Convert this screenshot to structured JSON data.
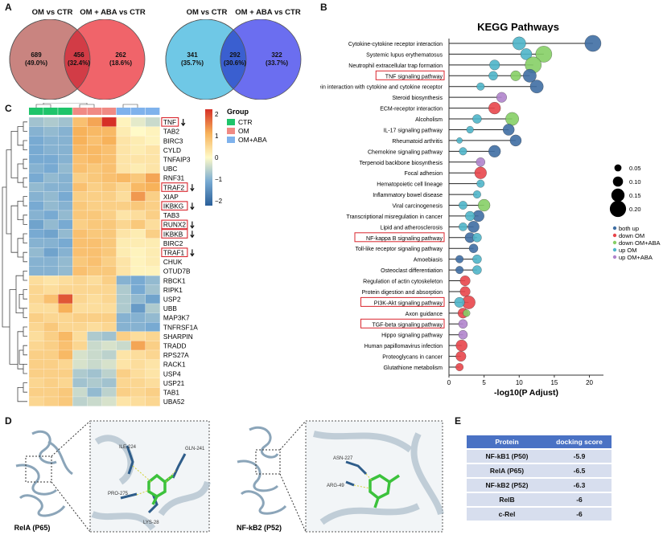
{
  "panels": {
    "a": "A",
    "b": "B",
    "c": "C",
    "d": "D",
    "e": "E"
  },
  "venn": [
    {
      "left_title": "OM vs CTR",
      "right_title": "OM + ABA vs CTR",
      "left_count": "689",
      "left_pct": "(49.0%)",
      "overlap_count": "456",
      "overlap_pct": "(32.4%)",
      "right_count": "262",
      "right_pct": "(18.6%)",
      "colors": {
        "left": "#c98480",
        "right": "#f0646a",
        "overlap": "#d23c46"
      }
    },
    {
      "left_title": "OM vs CTR",
      "right_title": "OM + ABA vs CTR",
      "left_count": "341",
      "left_pct": "(35.7%)",
      "overlap_count": "292",
      "overlap_pct": "(30.6%)",
      "right_count": "322",
      "right_pct": "(33.7%)",
      "colors": {
        "left": "#6fc8e6",
        "right": "#6b6ef0",
        "overlap": "#3a5fd0"
      }
    }
  ],
  "chart_data": [
    {
      "type": "scatter",
      "title": "KEGG Pathways",
      "xlabel": "-log10(P Adjust)",
      "xlim": [
        0,
        22
      ],
      "xticks": [
        0,
        5,
        10,
        15,
        20
      ],
      "size_legend": [
        "0.05",
        "0.10",
        "0.15",
        "0.20"
      ],
      "legend": [
        {
          "name": "both up",
          "color": "#3f6ea3"
        },
        {
          "name": "down OM",
          "color": "#e8464b"
        },
        {
          "name": "down OM+ABA",
          "color": "#86cf66"
        },
        {
          "name": "up OM",
          "color": "#4fb5c9"
        },
        {
          "name": "up OM+ABA",
          "color": "#b084cc"
        }
      ],
      "boxed": [
        "TNF signaling pathway",
        "NF-kappa B signaling pathway",
        "PI3K-Akt signaling pathway",
        "TGF-beta signaling pathway"
      ],
      "pathways": [
        {
          "name": "Cytokine-cytokine receptor interaction",
          "points": [
            {
              "x": 20.5,
              "s": 0.2,
              "g": 0
            },
            {
              "x": 10,
              "s": 0.15,
              "g": 3
            }
          ]
        },
        {
          "name": "Systemic lupus erythematosus",
          "points": [
            {
              "x": 13.5,
              "s": 0.2,
              "g": 2
            },
            {
              "x": 11,
              "s": 0.12,
              "g": 3
            }
          ]
        },
        {
          "name": "Neutrophil extracellular trap formation",
          "points": [
            {
              "x": 12,
              "s": 0.2,
              "g": 2
            },
            {
              "x": 6.5,
              "s": 0.1,
              "g": 3
            }
          ]
        },
        {
          "name": "TNF signaling pathway",
          "points": [
            {
              "x": 11.5,
              "s": 0.15,
              "g": 0
            },
            {
              "x": 9.5,
              "s": 0.1,
              "g": 2
            },
            {
              "x": 6.3,
              "s": 0.08,
              "g": 3
            }
          ]
        },
        {
          "name": "Viral protein interaction with cytokine and cytokine receptor",
          "points": [
            {
              "x": 12.5,
              "s": 0.15,
              "g": 0
            },
            {
              "x": 4.5,
              "s": 0.06,
              "g": 3
            }
          ]
        },
        {
          "name": "Steroid biosynthesis",
          "points": [
            {
              "x": 7.5,
              "s": 0.1,
              "g": 4
            }
          ]
        },
        {
          "name": "ECM-receptor interaction",
          "points": [
            {
              "x": 6.5,
              "s": 0.13,
              "g": 1
            }
          ]
        },
        {
          "name": "Alcoholism",
          "points": [
            {
              "x": 9,
              "s": 0.15,
              "g": 2
            },
            {
              "x": 4,
              "s": 0.08,
              "g": 3
            }
          ]
        },
        {
          "name": "IL-17 signaling pathway",
          "points": [
            {
              "x": 8.5,
              "s": 0.12,
              "g": 0
            },
            {
              "x": 3,
              "s": 0.05,
              "g": 3
            }
          ]
        },
        {
          "name": "Rheumatoid arthritis",
          "points": [
            {
              "x": 9.5,
              "s": 0.12,
              "g": 0
            },
            {
              "x": 1.5,
              "s": 0.03,
              "g": 3
            }
          ]
        },
        {
          "name": "Chemokine signaling pathway",
          "points": [
            {
              "x": 6.5,
              "s": 0.13,
              "g": 0
            },
            {
              "x": 2,
              "s": 0.06,
              "g": 3
            }
          ]
        },
        {
          "name": "Terpenoid backbone biosynthesis",
          "points": [
            {
              "x": 4.5,
              "s": 0.08,
              "g": 4
            }
          ]
        },
        {
          "name": "Focal adhesion",
          "points": [
            {
              "x": 4.5,
              "s": 0.13,
              "g": 1
            }
          ]
        },
        {
          "name": "Hematopoietic cell lineage",
          "points": [
            {
              "x": 4.5,
              "s": 0.06,
              "g": 3
            }
          ]
        },
        {
          "name": "Inflammatory bowel disease",
          "points": [
            {
              "x": 4,
              "s": 0.06,
              "g": 3
            }
          ]
        },
        {
          "name": "Viral carcinogenesis",
          "points": [
            {
              "x": 5,
              "s": 0.13,
              "g": 2
            },
            {
              "x": 2,
              "s": 0.07,
              "g": 3
            }
          ]
        },
        {
          "name": "Transcriptional misregulation in cancer",
          "points": [
            {
              "x": 4.2,
              "s": 0.12,
              "g": 0
            },
            {
              "x": 3,
              "s": 0.09,
              "g": 3
            }
          ]
        },
        {
          "name": "Lipid and atherosclerosis",
          "points": [
            {
              "x": 3.5,
              "s": 0.12,
              "g": 0
            },
            {
              "x": 2,
              "s": 0.07,
              "g": 3
            }
          ]
        },
        {
          "name": "NF-kappa B signaling pathway",
          "points": [
            {
              "x": 4,
              "s": 0.08,
              "g": 3
            },
            {
              "x": 3,
              "s": 0.1,
              "g": 0
            }
          ]
        },
        {
          "name": "Toll-like receptor signaling pathway",
          "points": [
            {
              "x": 3.5,
              "s": 0.08,
              "g": 0
            }
          ]
        },
        {
          "name": "Amoebiasis",
          "points": [
            {
              "x": 4,
              "s": 0.08,
              "g": 3
            },
            {
              "x": 1.5,
              "s": 0.06,
              "g": 0
            }
          ]
        },
        {
          "name": "Osteoclast differentiation",
          "points": [
            {
              "x": 4,
              "s": 0.08,
              "g": 3
            },
            {
              "x": 1.5,
              "s": 0.06,
              "g": 0
            }
          ]
        },
        {
          "name": "Regulation of actin cytoskeleton",
          "points": [
            {
              "x": 2.3,
              "s": 0.1,
              "g": 1
            }
          ]
        },
        {
          "name": "Protein digestion and absorption",
          "points": [
            {
              "x": 2.3,
              "s": 0.1,
              "g": 1
            }
          ]
        },
        {
          "name": "PI3K-Akt signaling pathway",
          "points": [
            {
              "x": 2.8,
              "s": 0.15,
              "g": 1
            },
            {
              "x": 1.5,
              "s": 0.1,
              "g": 3
            }
          ]
        },
        {
          "name": "Axon guidance",
          "points": [
            {
              "x": 2,
              "s": 0.1,
              "g": 1
            },
            {
              "x": 2.5,
              "s": 0.05,
              "g": 2
            }
          ]
        },
        {
          "name": "TGF-beta signaling pathway",
          "points": [
            {
              "x": 2,
              "s": 0.08,
              "g": 4
            }
          ]
        },
        {
          "name": "Hippo signaling pathway",
          "points": [
            {
              "x": 2,
              "s": 0.08,
              "g": 4
            }
          ]
        },
        {
          "name": "Human papillomavirus infection",
          "points": [
            {
              "x": 1.8,
              "s": 0.12,
              "g": 1
            }
          ]
        },
        {
          "name": "Proteoglycans in cancer",
          "points": [
            {
              "x": 1.7,
              "s": 0.1,
              "g": 1
            }
          ]
        },
        {
          "name": "Glutathione metabolism",
          "points": [
            {
              "x": 1.5,
              "s": 0.06,
              "g": 1
            }
          ]
        }
      ]
    },
    {
      "type": "heatmap",
      "columns": [
        "CTR",
        "CTR",
        "CTR",
        "OM",
        "OM",
        "OM",
        "OM+ABA",
        "OM+ABA",
        "OM+ABA"
      ],
      "group_title": "Group",
      "groups": [
        {
          "name": "CTR",
          "color": "#1fc46a"
        },
        {
          "name": "OM",
          "color": "#f08a84"
        },
        {
          "name": "OM+ABA",
          "color": "#7fb2ec"
        }
      ],
      "colorbar_ticks": [
        "2",
        "1",
        "0",
        "−1",
        "−2"
      ],
      "boxed": [
        "TNF",
        "TRAF2",
        "IKBKG",
        "RUNX2",
        "IKBKB",
        "TRAF1"
      ],
      "arrowed": [
        "TNF",
        "TRAF2",
        "IKBKG",
        "RUNX2",
        "IKBKB",
        "TRAF1"
      ],
      "rows": [
        {
          "gene": "TNF",
          "v": [
            -0.7,
            -0.6,
            -0.7,
            0.8,
            1.1,
            2.0,
            0.1,
            -0.2,
            -0.4
          ]
        },
        {
          "gene": "TAB2",
          "v": [
            -0.9,
            -0.8,
            -0.9,
            1.0,
            0.9,
            0.9,
            0.2,
            0.0,
            0.1
          ]
        },
        {
          "gene": "BIRC3",
          "v": [
            -1.0,
            -0.9,
            -0.9,
            1.0,
            0.8,
            1.0,
            0.3,
            0.2,
            0.1
          ]
        },
        {
          "gene": "CYLD",
          "v": [
            -1.0,
            -0.9,
            -0.9,
            0.9,
            0.9,
            0.8,
            0.3,
            0.2,
            0.3
          ]
        },
        {
          "gene": "TNFAIP3",
          "v": [
            -1.0,
            -1.0,
            -0.9,
            0.8,
            0.9,
            0.8,
            0.3,
            0.3,
            0.3
          ]
        },
        {
          "gene": "UBC",
          "v": [
            -0.9,
            -1.0,
            -0.8,
            0.8,
            0.7,
            0.8,
            0.3,
            0.2,
            0.3
          ]
        },
        {
          "gene": "RNF31",
          "v": [
            -1.0,
            -0.8,
            -0.9,
            0.6,
            0.7,
            0.8,
            0.9,
            0.7,
            1.1
          ]
        },
        {
          "gene": "TRAF2",
          "v": [
            -0.8,
            -0.9,
            -0.9,
            0.8,
            0.6,
            0.7,
            0.5,
            0.9,
            1.0
          ]
        },
        {
          "gene": "XIAP",
          "v": [
            -0.9,
            -0.8,
            -1.0,
            0.6,
            0.6,
            0.6,
            0.4,
            1.2,
            0.6
          ]
        },
        {
          "gene": "IKBKG",
          "v": [
            -1.0,
            -0.8,
            -0.9,
            0.7,
            0.6,
            0.6,
            0.6,
            0.7,
            0.6
          ]
        },
        {
          "gene": "TAB3",
          "v": [
            -0.9,
            -1.0,
            -0.8,
            0.7,
            0.7,
            0.6,
            0.3,
            0.4,
            0.6
          ]
        },
        {
          "gene": "RUNX2",
          "v": [
            -1.1,
            -0.8,
            -1.0,
            0.6,
            0.7,
            0.7,
            0.5,
            0.7,
            0.4
          ]
        },
        {
          "gene": "IKBKB",
          "v": [
            -1.0,
            -1.1,
            -0.8,
            0.8,
            0.7,
            0.7,
            0.3,
            0.2,
            0.6
          ]
        },
        {
          "gene": "BIRC2",
          "v": [
            -0.9,
            -0.9,
            -1.0,
            0.8,
            0.8,
            0.7,
            0.2,
            0.2,
            0.2
          ]
        },
        {
          "gene": "TRAF1",
          "v": [
            -0.8,
            -1.1,
            -0.9,
            0.8,
            0.8,
            0.7,
            0.2,
            0.1,
            0.2
          ]
        },
        {
          "gene": "CHUK",
          "v": [
            -0.9,
            -0.9,
            -0.8,
            0.7,
            0.8,
            0.6,
            0.3,
            0.1,
            0.2
          ]
        },
        {
          "gene": "OTUD7B",
          "v": [
            -0.9,
            -0.9,
            -0.8,
            0.8,
            0.7,
            0.7,
            0.3,
            0.1,
            0.1
          ]
        },
        {
          "gene": "RBCK1",
          "v": [
            0.4,
            0.3,
            0.4,
            0.5,
            0.4,
            0.6,
            -0.9,
            -1.0,
            -0.8
          ]
        },
        {
          "gene": "RIPK1",
          "v": [
            0.5,
            0.4,
            0.5,
            0.5,
            0.5,
            0.5,
            -0.6,
            -1.0,
            -0.7
          ]
        },
        {
          "gene": "USP2",
          "v": [
            0.5,
            0.8,
            1.7,
            0.5,
            0.4,
            0.5,
            -0.6,
            -0.8,
            -1.1
          ]
        },
        {
          "gene": "UBB",
          "v": [
            0.4,
            0.4,
            1.0,
            0.4,
            0.4,
            0.4,
            -0.6,
            -1.2,
            -0.6
          ]
        },
        {
          "gene": "MAP3K7",
          "v": [
            0.6,
            0.5,
            0.5,
            0.6,
            0.6,
            0.6,
            -0.9,
            -0.9,
            -0.8
          ]
        },
        {
          "gene": "TNFRSF1A",
          "v": [
            0.5,
            0.7,
            0.5,
            0.5,
            0.4,
            0.5,
            -0.9,
            -0.9,
            -1.0
          ]
        },
        {
          "gene": "SHARPIN",
          "v": [
            0.4,
            0.6,
            0.9,
            0.4,
            -0.6,
            -0.7,
            0.6,
            0.4,
            0.5
          ]
        },
        {
          "gene": "TRADD",
          "v": [
            0.5,
            0.6,
            0.8,
            0.5,
            -0.4,
            -0.3,
            -0.4,
            1.1,
            0.6
          ]
        },
        {
          "gene": "RPS27A",
          "v": [
            0.6,
            0.6,
            0.9,
            -0.3,
            -0.4,
            -0.5,
            0.3,
            0.4,
            0.5
          ]
        },
        {
          "gene": "RACK1",
          "v": [
            0.6,
            0.6,
            0.5,
            -0.3,
            -0.4,
            -0.3,
            0.3,
            0.4,
            0.3
          ]
        },
        {
          "gene": "USP4",
          "v": [
            0.6,
            0.6,
            0.6,
            -0.6,
            -0.7,
            -0.5,
            0.6,
            0.4,
            0.3
          ]
        },
        {
          "gene": "USP21",
          "v": [
            0.5,
            0.6,
            0.5,
            -0.7,
            -0.6,
            -0.7,
            0.5,
            0.5,
            0.4
          ]
        },
        {
          "gene": "TAB1",
          "v": [
            0.6,
            0.6,
            0.7,
            -0.4,
            -0.8,
            -0.5,
            0.6,
            0.5,
            0.6
          ]
        },
        {
          "gene": "UBA52",
          "v": [
            0.5,
            0.6,
            0.7,
            -0.5,
            -0.4,
            -0.3,
            0.3,
            0.4,
            0.5
          ]
        }
      ]
    }
  ],
  "docking_images": [
    {
      "caption": "RelA (P65)",
      "residues": [
        "ILE-224",
        "GLN-241",
        "PRO-275",
        "LYS-28"
      ]
    },
    {
      "caption": "NF-kB2 (P52)",
      "residues": [
        "ASN-227",
        "ARG-49"
      ]
    }
  ],
  "docking_table": {
    "headers": [
      "Protein",
      "docking score"
    ],
    "rows": [
      [
        "NF-kB1 (P50)",
        "-5.9"
      ],
      [
        "RelA (P65)",
        "-6.5"
      ],
      [
        "NF-kB2 (P52)",
        "-6.3"
      ],
      [
        "RelB",
        "-6"
      ],
      [
        "c-Rel",
        "-6"
      ]
    ]
  }
}
